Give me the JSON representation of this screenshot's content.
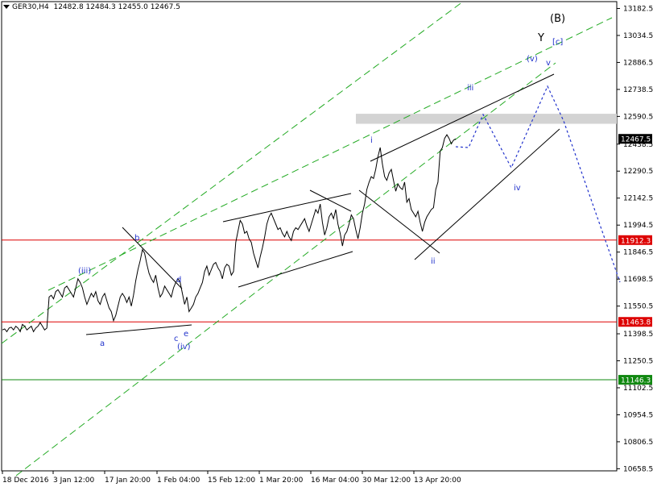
{
  "header": {
    "symbol": "GER30,H4",
    "ohlc": "12482.8 12484.3 12455.0 12467.5"
  },
  "chart_data": {
    "type": "line",
    "subtype": "candlestick-close",
    "ylim": [
      10647,
      13220
    ],
    "y_ticks": [
      "13182.5",
      "13034.5",
      "12886.5",
      "12738.5",
      "12590.5",
      "12438.5",
      "12290.5",
      "12142.5",
      "11994.5",
      "11846.5",
      "11698.5",
      "11550.5",
      "11398.5",
      "11250.5",
      "11102.5",
      "10954.5",
      "10806.5",
      "10658.5"
    ],
    "x_labels": [
      "18 Dec 2016",
      "3 Jan 12:00",
      "17 Jan 20:00",
      "1 Feb 04:00",
      "15 Feb 12:00",
      "1 Mar 20:00",
      "16 Mar 04:00",
      "30 Mar 12:00",
      "13 Apr 20:00"
    ],
    "last_price": 12467.5,
    "series": [
      {
        "values": [
          11420,
          11425,
          11410,
          11430,
          11435,
          11420,
          11440,
          11430,
          11410,
          11450,
          11440,
          11420,
          11430,
          11440,
          11410,
          11430,
          11440,
          11460,
          11440,
          11420,
          11430,
          11600,
          11610,
          11590,
          11630,
          11640,
          11620,
          11600,
          11650,
          11660,
          11640,
          11620,
          11600,
          11650,
          11700,
          11680,
          11650,
          11600,
          11560,
          11590,
          11620,
          11600,
          11630,
          11580,
          11560,
          11600,
          11620,
          11580,
          11540,
          11520,
          11470,
          11500,
          11550,
          11600,
          11620,
          11600,
          11570,
          11600,
          11550,
          11610,
          11690,
          11750,
          11800,
          11860,
          11840,
          11780,
          11730,
          11700,
          11680,
          11720,
          11650,
          11600,
          11620,
          11660,
          11640,
          11620,
          11600,
          11650,
          11680,
          11700,
          11680,
          11620,
          11560,
          11600,
          11520,
          11540,
          11560,
          11600,
          11620,
          11650,
          11680,
          11740,
          11770,
          11720,
          11750,
          11780,
          11790,
          11760,
          11740,
          11700,
          11760,
          11780,
          11770,
          11720,
          11740,
          11900,
          11960,
          12020,
          12000,
          11950,
          11960,
          11920,
          11900,
          11840,
          11800,
          11760,
          11820,
          11870,
          11930,
          12000,
          12040,
          12060,
          12030,
          12000,
          11970,
          11980,
          11950,
          11930,
          11960,
          11930,
          11910,
          11960,
          11980,
          11970,
          11990,
          12010,
          12030,
          11990,
          11960,
          12000,
          12040,
          12080,
          12060,
          12110,
          12010,
          11940,
          11980,
          12040,
          12060,
          12030,
          12080,
          12000,
          11950,
          11880,
          11940,
          11960,
          12000,
          12050,
          12030,
          11970,
          11920,
          11980,
          12060,
          12110,
          12190,
          12230,
          12260,
          12250,
          12300,
          12370,
          12420,
          12330,
          12260,
          12240,
          12280,
          12300,
          12240,
          12180,
          12220,
          12200,
          12190,
          12230,
          12120,
          12140,
          12080,
          12060,
          12040,
          12070,
          12010,
          11960,
          12010,
          12040,
          12060,
          12080,
          12090,
          12190,
          12230,
          12400,
          12420,
          12470,
          12490,
          12470,
          12440,
          12460,
          12467.5
        ]
      }
    ],
    "annotations": [
      {
        "text": "(B)",
        "color": "#000000"
      },
      {
        "text": "Y",
        "color": "#000000"
      },
      {
        "text": "[c]",
        "color": "#2233cc"
      },
      {
        "text": "(v)",
        "color": "#2233cc"
      },
      {
        "text": "v",
        "color": "#2233cc"
      },
      {
        "text": "iii",
        "color": "#2233cc"
      },
      {
        "text": "i",
        "color": "#2233cc"
      },
      {
        "text": "iv",
        "color": "#2233cc"
      },
      {
        "text": "ii",
        "color": "#2233cc"
      },
      {
        "text": "(iii)",
        "color": "#2233cc"
      },
      {
        "text": "b",
        "color": "#2233cc"
      },
      {
        "text": "d",
        "color": "#2233cc"
      },
      {
        "text": "a",
        "color": "#2233cc"
      },
      {
        "text": "c",
        "color": "#2233cc"
      },
      {
        "text": "e",
        "color": "#2233cc"
      },
      {
        "text": "(iv)",
        "color": "#2233cc"
      }
    ],
    "horizontal_lines": [
      {
        "value": 11912.3,
        "label": "11912.3",
        "color": "#dd0000"
      },
      {
        "value": 11463.8,
        "label": "11463.8",
        "color": "#dd0000"
      },
      {
        "value": 11146.3,
        "label": "11146.3",
        "color": "#118811"
      }
    ],
    "resistance_zone": [
      12550,
      12605
    ],
    "grid": false,
    "colors": {
      "price": "#000000",
      "channel_dashed": "#22aa22",
      "forecast": "#2233cc",
      "zone": "#d3d3d3",
      "axis_bg_price": "#000000",
      "wave_label": "#2233cc"
    }
  }
}
